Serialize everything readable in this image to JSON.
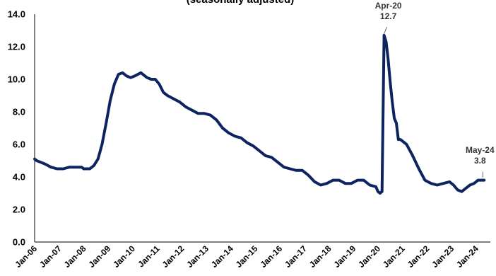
{
  "chart_data": {
    "type": "line",
    "subtitle": "(seasonally adjusted)",
    "ylim": [
      0,
      14
    ],
    "yticks": [
      "0.0",
      "2.0",
      "4.0",
      "6.0",
      "8.0",
      "10.0",
      "12.0",
      "14.0"
    ],
    "xtick_labels": [
      "Jan-06",
      "Jan-07",
      "Jan-08",
      "Jan-09",
      "Jan-10",
      "Jan-11",
      "Jan-12",
      "Jan-13",
      "Jan-14",
      "Jan-15",
      "Jan-16",
      "Jan-17",
      "Jan-18",
      "Jan-19",
      "Jan-20",
      "Jan-21",
      "Jan-22",
      "Jan-23",
      "Jan-24"
    ],
    "grid": false,
    "legend": "none",
    "line_color": "#0d2461",
    "series": [
      {
        "points": [
          [
            "2006-01",
            5.1
          ],
          [
            "2006-02",
            5.0
          ],
          [
            "2006-04",
            4.9
          ],
          [
            "2006-06",
            4.8
          ],
          [
            "2006-09",
            4.6
          ],
          [
            "2006-12",
            4.5
          ],
          [
            "2007-03",
            4.5
          ],
          [
            "2007-06",
            4.6
          ],
          [
            "2007-09",
            4.6
          ],
          [
            "2007-12",
            4.6
          ],
          [
            "2008-01",
            4.5
          ],
          [
            "2008-04",
            4.5
          ],
          [
            "2008-06",
            4.7
          ],
          [
            "2008-08",
            5.1
          ],
          [
            "2008-10",
            6.0
          ],
          [
            "2008-12",
            7.3
          ],
          [
            "2009-02",
            8.7
          ],
          [
            "2009-04",
            9.7
          ],
          [
            "2009-06",
            10.3
          ],
          [
            "2009-08",
            10.4
          ],
          [
            "2009-10",
            10.2
          ],
          [
            "2009-12",
            10.1
          ],
          [
            "2010-02",
            10.2
          ],
          [
            "2010-05",
            10.4
          ],
          [
            "2010-08",
            10.1
          ],
          [
            "2010-10",
            10.0
          ],
          [
            "2010-12",
            10.0
          ],
          [
            "2011-02",
            9.7
          ],
          [
            "2011-04",
            9.2
          ],
          [
            "2011-06",
            9.0
          ],
          [
            "2011-09",
            8.8
          ],
          [
            "2011-12",
            8.6
          ],
          [
            "2012-03",
            8.3
          ],
          [
            "2012-06",
            8.1
          ],
          [
            "2012-09",
            7.9
          ],
          [
            "2012-12",
            7.9
          ],
          [
            "2013-03",
            7.8
          ],
          [
            "2013-06",
            7.5
          ],
          [
            "2013-09",
            7.0
          ],
          [
            "2013-12",
            6.7
          ],
          [
            "2014-03",
            6.5
          ],
          [
            "2014-06",
            6.4
          ],
          [
            "2014-09",
            6.1
          ],
          [
            "2014-12",
            5.9
          ],
          [
            "2015-03",
            5.6
          ],
          [
            "2015-06",
            5.3
          ],
          [
            "2015-09",
            5.2
          ],
          [
            "2015-12",
            4.9
          ],
          [
            "2016-03",
            4.6
          ],
          [
            "2016-06",
            4.5
          ],
          [
            "2016-09",
            4.4
          ],
          [
            "2016-12",
            4.4
          ],
          [
            "2017-03",
            4.1
          ],
          [
            "2017-06",
            3.7
          ],
          [
            "2017-09",
            3.5
          ],
          [
            "2017-12",
            3.6
          ],
          [
            "2018-03",
            3.8
          ],
          [
            "2018-06",
            3.8
          ],
          [
            "2018-09",
            3.6
          ],
          [
            "2018-12",
            3.6
          ],
          [
            "2019-03",
            3.8
          ],
          [
            "2019-06",
            3.8
          ],
          [
            "2019-09",
            3.5
          ],
          [
            "2019-12",
            3.4
          ],
          [
            "2020-01",
            3.1
          ],
          [
            "2020-02",
            3.0
          ],
          [
            "2020-03",
            3.1
          ],
          [
            "2020-04",
            12.7
          ],
          [
            "2020-05",
            12.3
          ],
          [
            "2020-06",
            11.2
          ],
          [
            "2020-07",
            9.8
          ],
          [
            "2020-08",
            8.6
          ],
          [
            "2020-09",
            7.6
          ],
          [
            "2020-10",
            7.3
          ],
          [
            "2020-11",
            6.3
          ],
          [
            "2020-12",
            6.3
          ],
          [
            "2021-03",
            6.0
          ],
          [
            "2021-06",
            5.3
          ],
          [
            "2021-09",
            4.5
          ],
          [
            "2021-12",
            3.8
          ],
          [
            "2022-03",
            3.6
          ],
          [
            "2022-06",
            3.5
          ],
          [
            "2022-09",
            3.6
          ],
          [
            "2022-12",
            3.7
          ],
          [
            "2023-02",
            3.5
          ],
          [
            "2023-04",
            3.2
          ],
          [
            "2023-06",
            3.1
          ],
          [
            "2023-08",
            3.3
          ],
          [
            "2023-10",
            3.5
          ],
          [
            "2023-12",
            3.6
          ],
          [
            "2024-02",
            3.8
          ],
          [
            "2024-04",
            3.8
          ],
          [
            "2024-05",
            3.8
          ]
        ]
      }
    ],
    "annotations": [
      {
        "date": "2020-04",
        "value": 12.7,
        "label": "Apr-20",
        "value_label": "12.7"
      },
      {
        "date": "2024-05",
        "value": 3.8,
        "label": "May-24",
        "value_label": "3.8"
      }
    ]
  }
}
